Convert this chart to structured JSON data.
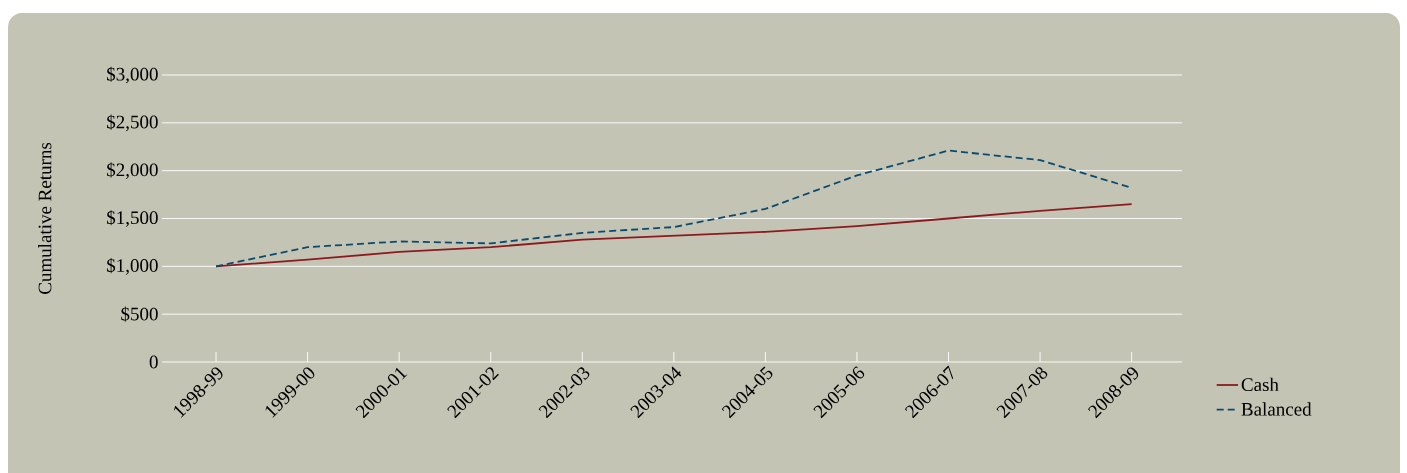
{
  "chart_data": {
    "type": "line",
    "ylabel": "Cumulative Returns",
    "categories": [
      "1998-99",
      "1999-00",
      "2000-01",
      "2001-02",
      "2002-03",
      "2003-04",
      "2004-05",
      "2005-06",
      "2006-07",
      "2007-08",
      "2008-09"
    ],
    "series": [
      {
        "name": "Cash",
        "color": "#8b1a1f",
        "line_style": "solid",
        "values": [
          1000,
          1070,
          1150,
          1200,
          1280,
          1320,
          1360,
          1420,
          1500,
          1580,
          1650
        ]
      },
      {
        "name": "Balanced",
        "color": "#0b4a6f",
        "line_style": "dashed",
        "values": [
          1000,
          1200,
          1260,
          1240,
          1350,
          1410,
          1600,
          1950,
          2210,
          2110,
          1820
        ]
      }
    ],
    "ylim": [
      0,
      3000
    ],
    "yticks": [
      {
        "value": 0,
        "label": "0"
      },
      {
        "value": 500,
        "label": "$500"
      },
      {
        "value": 1000,
        "label": "$1,000"
      },
      {
        "value": 1500,
        "label": "$1,500"
      },
      {
        "value": 2000,
        "label": "$2,000"
      },
      {
        "value": 2500,
        "label": "$2,500"
      },
      {
        "value": 3000,
        "label": "$3,000"
      }
    ],
    "grid": "y",
    "legend": "bottom right",
    "marker": "none"
  }
}
